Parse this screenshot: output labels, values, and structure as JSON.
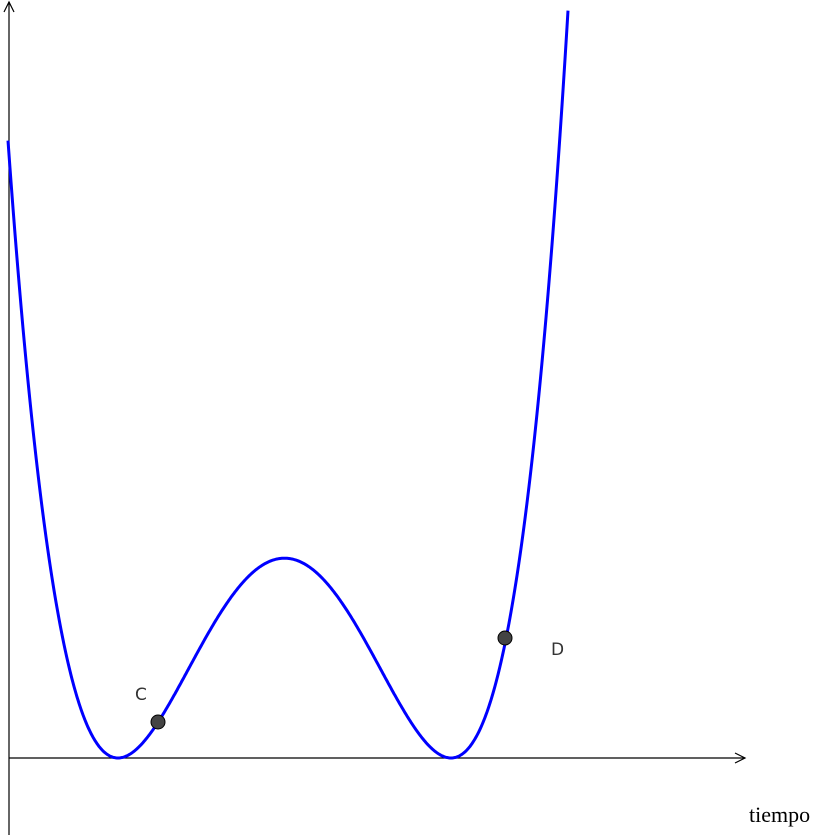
{
  "points": [
    {
      "label": "C"
    },
    {
      "label": "D"
    }
  ],
  "x_axis_label": "tiempo"
}
